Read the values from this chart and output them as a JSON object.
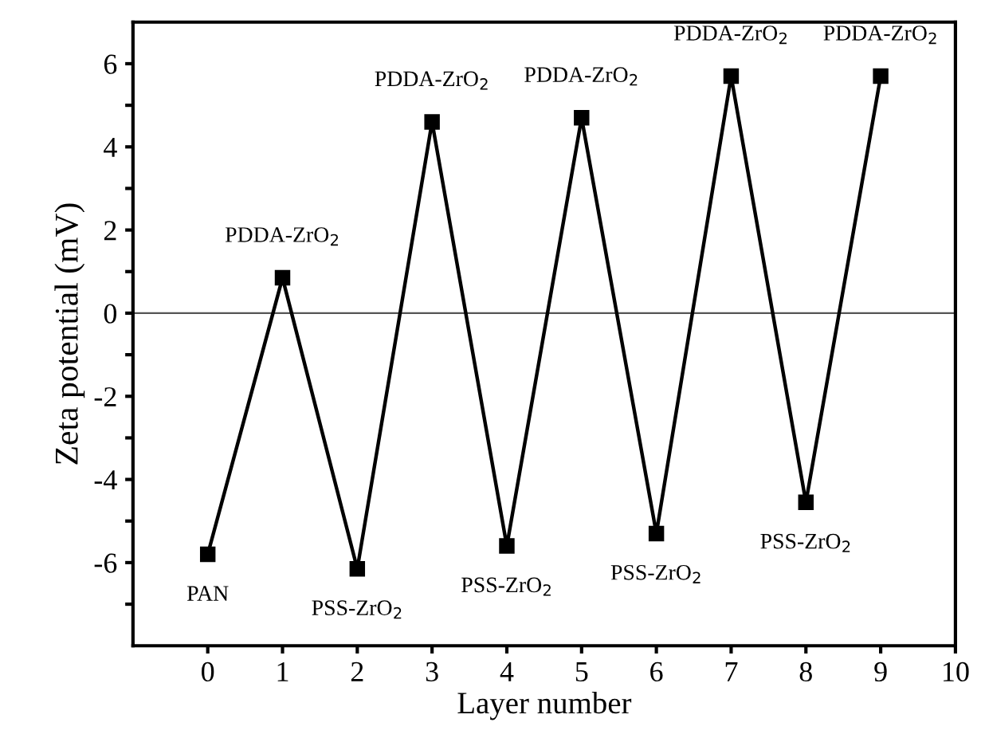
{
  "chart_data": {
    "type": "line",
    "xlabel": "Layer number",
    "ylabel": "Zeta potential (mV)",
    "x": [
      0,
      1,
      2,
      3,
      4,
      5,
      6,
      7,
      8,
      9
    ],
    "series": [
      {
        "color": "#000000",
        "values": [
          -5.8,
          0.85,
          -6.15,
          4.6,
          -5.6,
          4.7,
          -5.3,
          5.7,
          -4.55,
          5.7
        ]
      }
    ],
    "xlim": [
      -1,
      10
    ],
    "xticks": [
      0,
      1,
      2,
      3,
      4,
      5,
      6,
      7,
      8,
      9,
      10
    ],
    "ylim": [
      -8,
      7
    ],
    "yticks": [
      {
        "value": -7,
        "label": null
      },
      -6,
      {
        "value": -5,
        "label": null
      },
      -4,
      {
        "value": -3,
        "label": null
      },
      -2,
      {
        "value": -1,
        "label": null
      },
      0,
      {
        "value": 1,
        "label": null
      },
      2,
      {
        "value": 3,
        "label": null
      },
      4,
      {
        "value": 5,
        "label": null
      },
      6
    ],
    "ref_lines": [
      {
        "axis": "y",
        "value": 0,
        "color": "#555555"
      }
    ],
    "marker": "square",
    "line_style": "solid",
    "grid": false,
    "legend": false,
    "annotations": [
      {
        "text": "PAN",
        "x": 0,
        "y": -5.8
      },
      {
        "text": "PDDA-ZrO$_{2}$",
        "x": 1,
        "y": 0.85
      },
      {
        "text": "PSS-ZrO$_{2}$",
        "x": 2,
        "y": -6.15
      },
      {
        "text": "PDDA-ZrO$_{2}$",
        "x": 3,
        "y": 4.6
      },
      {
        "text": "PSS-ZrO$_{2}$",
        "x": 4,
        "y": -5.6
      },
      {
        "text": "PDDA-ZrO$_{2}$",
        "x": 5,
        "y": 4.7
      },
      {
        "text": "PSS-ZrO$_{2}$",
        "x": 6,
        "y": -5.3
      },
      {
        "text": "PDDA-ZrO$_{2}$",
        "x": 7,
        "y": 5.7
      },
      {
        "text": "PSS-ZrO$_{2}$",
        "x": 8,
        "y": -4.55
      },
      {
        "text": "PDDA-ZrO$_{2}$",
        "x": 9,
        "y": 5.7
      }
    ]
  }
}
